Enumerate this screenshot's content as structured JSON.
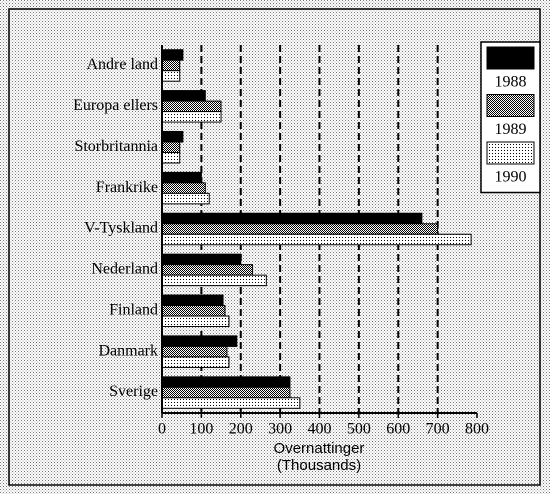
{
  "chart_data": {
    "type": "barh",
    "categories": [
      "Andre land",
      "Europa ellers",
      "Storbritannia",
      "Frankrike",
      "V-Tyskland",
      "Nederland",
      "Finland",
      "Danmark",
      "Sverige"
    ],
    "series": [
      {
        "name": "1988",
        "color": "#000000",
        "pattern": "solid",
        "values": [
          53,
          110,
          53,
          100,
          660,
          200,
          155,
          190,
          325
        ]
      },
      {
        "name": "1989",
        "color": "#000000",
        "pattern": "dense",
        "values": [
          45,
          150,
          45,
          110,
          700,
          230,
          160,
          165,
          325
        ]
      },
      {
        "name": "1990",
        "color": "#000000",
        "pattern": "sparse",
        "values": [
          45,
          150,
          45,
          120,
          785,
          265,
          170,
          170,
          350
        ]
      }
    ],
    "xlabel": [
      "Overnattinger",
      "(Thousands)"
    ],
    "xlim": [
      0,
      800
    ],
    "xticks": [
      0,
      100,
      200,
      300,
      400,
      500,
      600,
      700,
      800
    ],
    "grid": true,
    "legend": "upper right"
  }
}
